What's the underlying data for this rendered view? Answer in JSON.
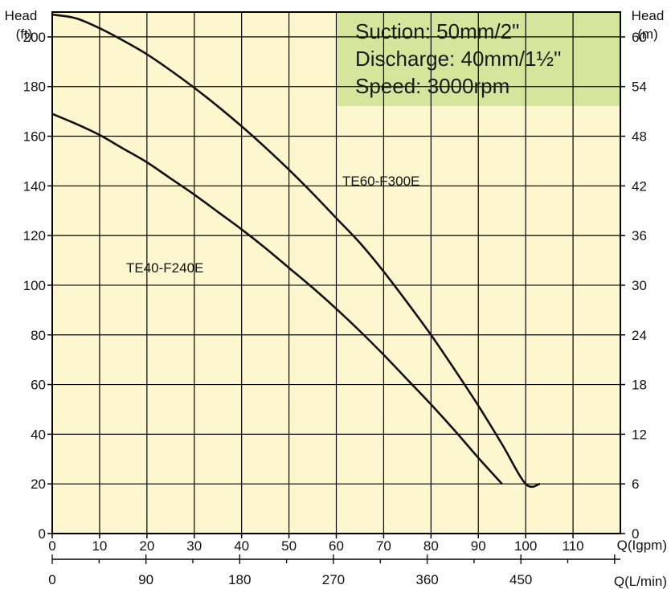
{
  "chart_data": {
    "type": "line",
    "x_label": "Q(Igpm)",
    "x2_label": "Q(L/min)",
    "y_label_left": [
      "Head",
      "(ft)"
    ],
    "y_label_right": [
      "Head",
      "(m)"
    ],
    "xlim": [
      0,
      120
    ],
    "ylim": [
      0,
      210
    ],
    "grid": true,
    "x_ticks": [
      "0",
      "10",
      "20",
      "30",
      "40",
      "50",
      "60",
      "70",
      "80",
      "90",
      "100",
      "110"
    ],
    "x2_ticks": [
      "0",
      "90",
      "180",
      "270",
      "360",
      "450"
    ],
    "y_ticks_left": [
      "0",
      "20",
      "40",
      "60",
      "80",
      "100",
      "120",
      "140",
      "160",
      "180",
      "200"
    ],
    "y_ticks_right": [
      "0",
      "6",
      "12",
      "18",
      "24",
      "30",
      "36",
      "42",
      "48",
      "54",
      "60"
    ],
    "info_box": [
      "Suction: 50mm/2\"",
      "Discharge: 40mm/1½\"",
      "Speed: 3000rpm"
    ],
    "series": [
      {
        "name": "TE60-F300E",
        "x": [
          0,
          5,
          10,
          15,
          20,
          25,
          30,
          35,
          40,
          45,
          50,
          55,
          60,
          65,
          70,
          75,
          80,
          85,
          90,
          95,
          100,
          103
        ],
        "y": [
          209,
          207.5,
          203.5,
          198.5,
          193,
          186.5,
          179.5,
          172,
          164,
          155.5,
          146.5,
          137,
          127,
          117,
          105.5,
          93,
          80,
          66,
          51.5,
          36,
          20,
          20
        ]
      },
      {
        "name": "TE40-F240E",
        "x": [
          0,
          5,
          10,
          15,
          20,
          25,
          30,
          35,
          40,
          45,
          50,
          55,
          60,
          65,
          70,
          75,
          80,
          85,
          90,
          95
        ],
        "y": [
          169,
          165,
          160.5,
          155,
          149.5,
          143,
          136.5,
          129.5,
          122.5,
          115,
          107,
          99,
          90.5,
          81.5,
          72,
          62,
          52,
          41.5,
          30.5,
          20
        ]
      }
    ]
  }
}
